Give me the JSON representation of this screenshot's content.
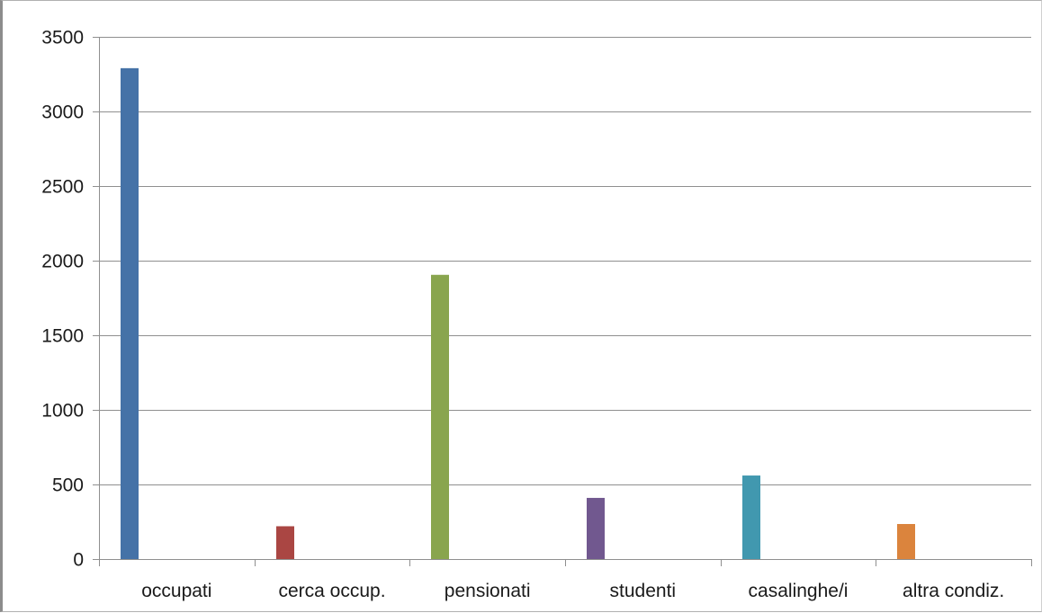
{
  "chart_data": {
    "type": "bar",
    "title": "",
    "xlabel": "",
    "ylabel": "",
    "categories": [
      "occupati",
      "cerca occup.",
      "pensionati",
      "studenti",
      "casalinghe/i",
      "altra condiz."
    ],
    "values": [
      3290,
      220,
      1905,
      410,
      560,
      235
    ],
    "colors": [
      "#4572A7",
      "#AA4643",
      "#89A54E",
      "#71588F",
      "#4198AF",
      "#DB843D"
    ],
    "ylim": [
      0,
      3500
    ],
    "yticks": [
      0,
      500,
      1000,
      1500,
      2000,
      2500,
      3000,
      3500
    ],
    "grid": true,
    "legend": "none"
  }
}
